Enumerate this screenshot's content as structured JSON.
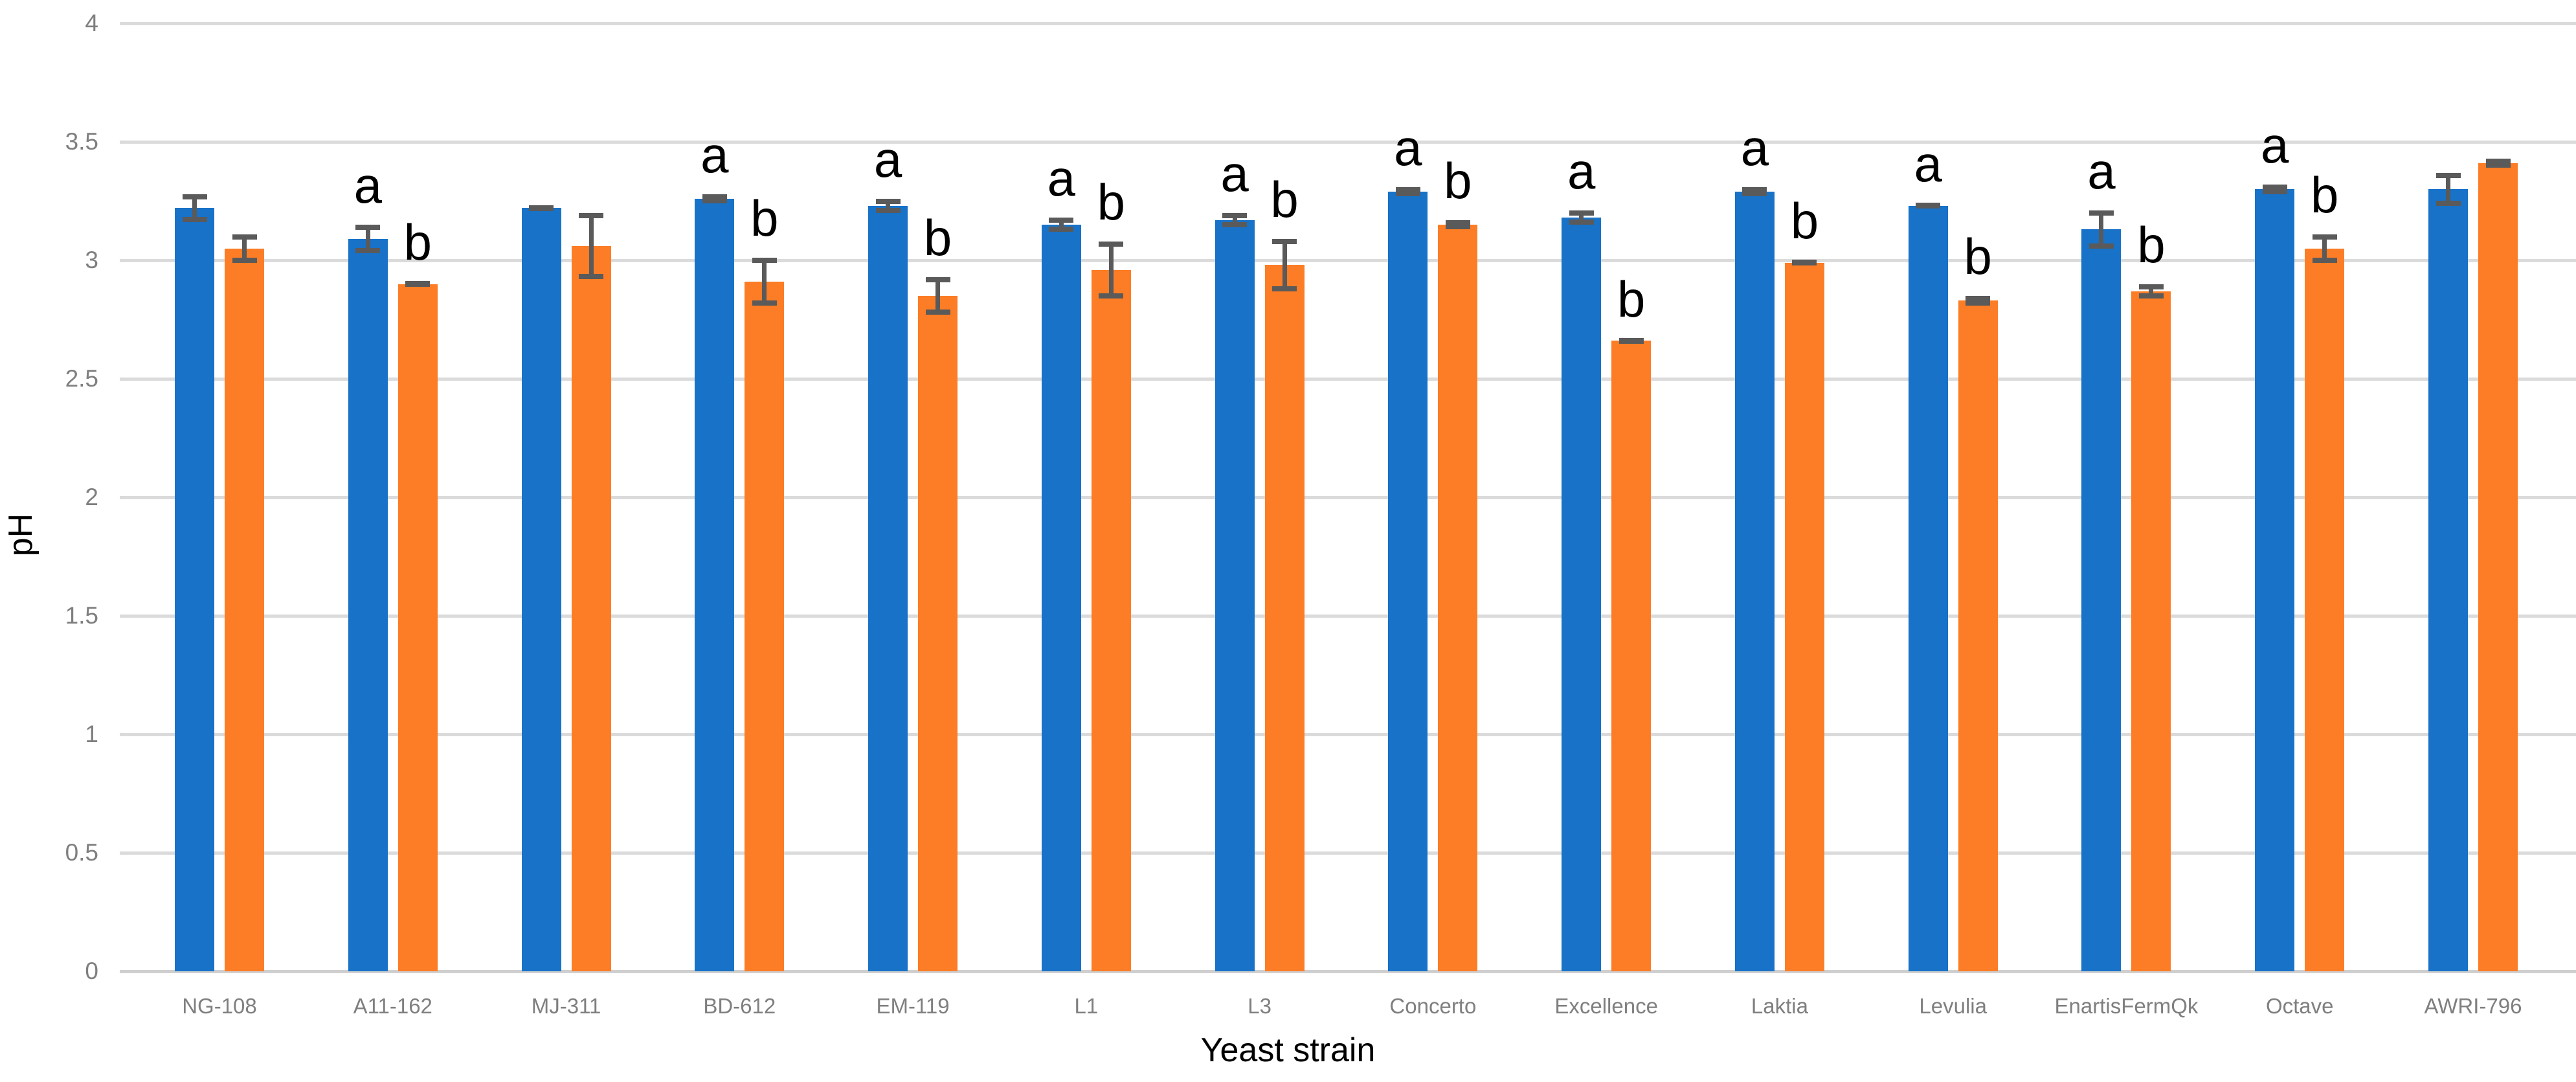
{
  "chart_data": {
    "type": "bar",
    "title": "",
    "xlabel": "Yeast strain",
    "ylabel": "pH",
    "ylim": [
      0,
      4
    ],
    "ytick_step": 0.5,
    "ytick_labels": [
      "4",
      "3.5",
      "3",
      "2.5",
      "2",
      "1.5",
      "1",
      "0.5",
      "0"
    ],
    "grid": true,
    "legend_position": "none",
    "categories": [
      "NG-108",
      "A11-162",
      "MJ-311",
      "BD-612",
      "EM-119",
      "L1",
      "L3",
      "Concerto",
      "Excellence",
      "Laktia",
      "Levulia",
      "EnartisFermQk",
      "Octave",
      "AWRI-796"
    ],
    "series": [
      {
        "name": "series-1-blue",
        "color": "#1772C8",
        "values": [
          3.22,
          3.09,
          3.22,
          3.26,
          3.23,
          3.15,
          3.17,
          3.29,
          3.18,
          3.29,
          3.23,
          3.13,
          3.3,
          3.3
        ],
        "errors": [
          0.06,
          0.06,
          0.01,
          0.02,
          0.03,
          0.03,
          0.03,
          0.02,
          0.03,
          0.02,
          0.01,
          0.08,
          0.02,
          0.07
        ],
        "letters": [
          "",
          "a",
          "",
          "a",
          "a",
          "a",
          "a",
          "a",
          "a",
          "a",
          "a",
          "a",
          "a",
          ""
        ]
      },
      {
        "name": "series-2-orange",
        "color": "#FC7D25",
        "values": [
          3.05,
          2.9,
          3.06,
          2.91,
          2.85,
          2.96,
          2.98,
          3.15,
          2.66,
          2.99,
          2.83,
          2.87,
          3.05,
          3.41
        ],
        "errors": [
          0.06,
          0.01,
          0.14,
          0.1,
          0.08,
          0.12,
          0.11,
          0.02,
          0.01,
          0.01,
          0.02,
          0.03,
          0.06,
          0.02
        ],
        "letters": [
          "",
          "b",
          "",
          "b",
          "b",
          "b",
          "b",
          "b",
          "b",
          "b",
          "b",
          "b",
          "b",
          ""
        ]
      }
    ],
    "colors": {
      "gridline": "#DBDBDB",
      "axis_line": "#CFCFCF",
      "error_bar": "#5A5A5A",
      "tick_label": "#7F7F7F",
      "axis_title": "#000000",
      "significance_letter": "#000000"
    }
  }
}
